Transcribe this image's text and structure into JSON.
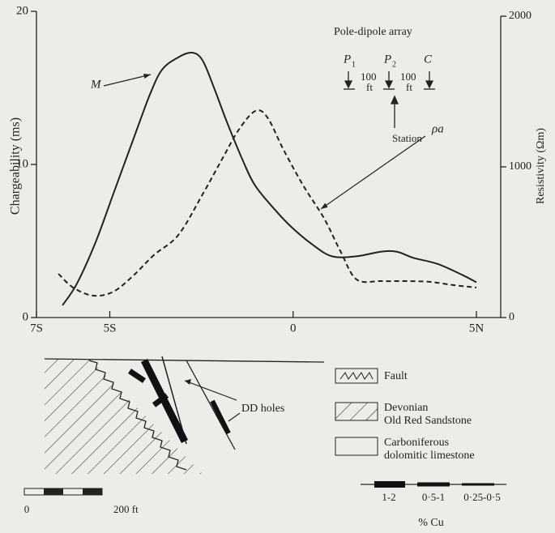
{
  "chart_data": {
    "type": "line",
    "y_label": "Chargeability (ms)",
    "y2_label": "Resistivity (Ωm)",
    "xlim": [
      -7,
      5
    ],
    "xticks": [
      {
        "value": -7,
        "label": "7S"
      },
      {
        "value": -5,
        "label": "5S"
      },
      0,
      {
        "value": 5,
        "label": "5N"
      }
    ],
    "ylim": [
      0,
      20
    ],
    "yticks": [
      0,
      10,
      20
    ],
    "y2lim": [
      0,
      2000
    ],
    "y2ticks": [
      0,
      1000,
      2000
    ],
    "series": [
      {
        "name": "M",
        "color": "#222222",
        "line_style": "solid",
        "axis": "y",
        "x": [
          -6.29,
          -5.9,
          -5.39,
          -4.9,
          -4.35,
          -3.9,
          -3.57,
          -3.13,
          -2.76,
          -2.47,
          -2.14,
          -1.81,
          -1.36,
          -1.03,
          -0.48,
          -0.04,
          0.51,
          1.06,
          1.73,
          2.39,
          2.83,
          3.28,
          3.94,
          4.6,
          5.0
        ],
        "values": [
          0.8,
          2.2,
          4.9,
          8.1,
          11.7,
          14.6,
          16.2,
          17.0,
          17.3,
          16.8,
          14.9,
          12.8,
          10.2,
          8.6,
          7.0,
          5.9,
          4.8,
          4.0,
          4.0,
          4.3,
          4.3,
          3.9,
          3.5,
          2.8,
          2.3
        ]
      },
      {
        "name": "ρa",
        "color": "#222222",
        "line_style": "dashed",
        "axis": "y2",
        "x": [
          -6.4,
          -6.0,
          -5.45,
          -4.9,
          -4.35,
          -3.8,
          -3.13,
          -2.47,
          -1.92,
          -1.48,
          -1.03,
          -0.7,
          -0.26,
          0.29,
          0.85,
          1.29,
          1.73,
          2.39,
          3.06,
          3.72,
          4.38,
          5.0
        ],
        "values": [
          290,
          199,
          145,
          172,
          280,
          414,
          548,
          817,
          1059,
          1247,
          1371,
          1328,
          1113,
          871,
          656,
          441,
          253,
          242,
          242,
          237,
          215,
          199
        ]
      }
    ],
    "inset": {
      "title": "Pole-dipole array",
      "p1": "P",
      "p1_sub": "1",
      "p2": "P",
      "p2_sub": "2",
      "c": "C",
      "spacing_1": "100",
      "unit_1": "ft",
      "spacing_2": "100",
      "unit_2": "ft",
      "station": "Station"
    }
  },
  "cross_section": {
    "holes_label": "DD holes",
    "legend": {
      "fault": "Fault",
      "sandstone_1": "Devonian",
      "sandstone_2": "Old Red Sandstone",
      "limestone_1": "Carboniferous",
      "limestone_2": "dolomitic limestone"
    },
    "scale": {
      "start": "0",
      "end": "200 ft"
    },
    "copper": {
      "grades": [
        "1-2",
        "0·5-1",
        "0·25-0·5"
      ],
      "title": "% Cu"
    }
  }
}
